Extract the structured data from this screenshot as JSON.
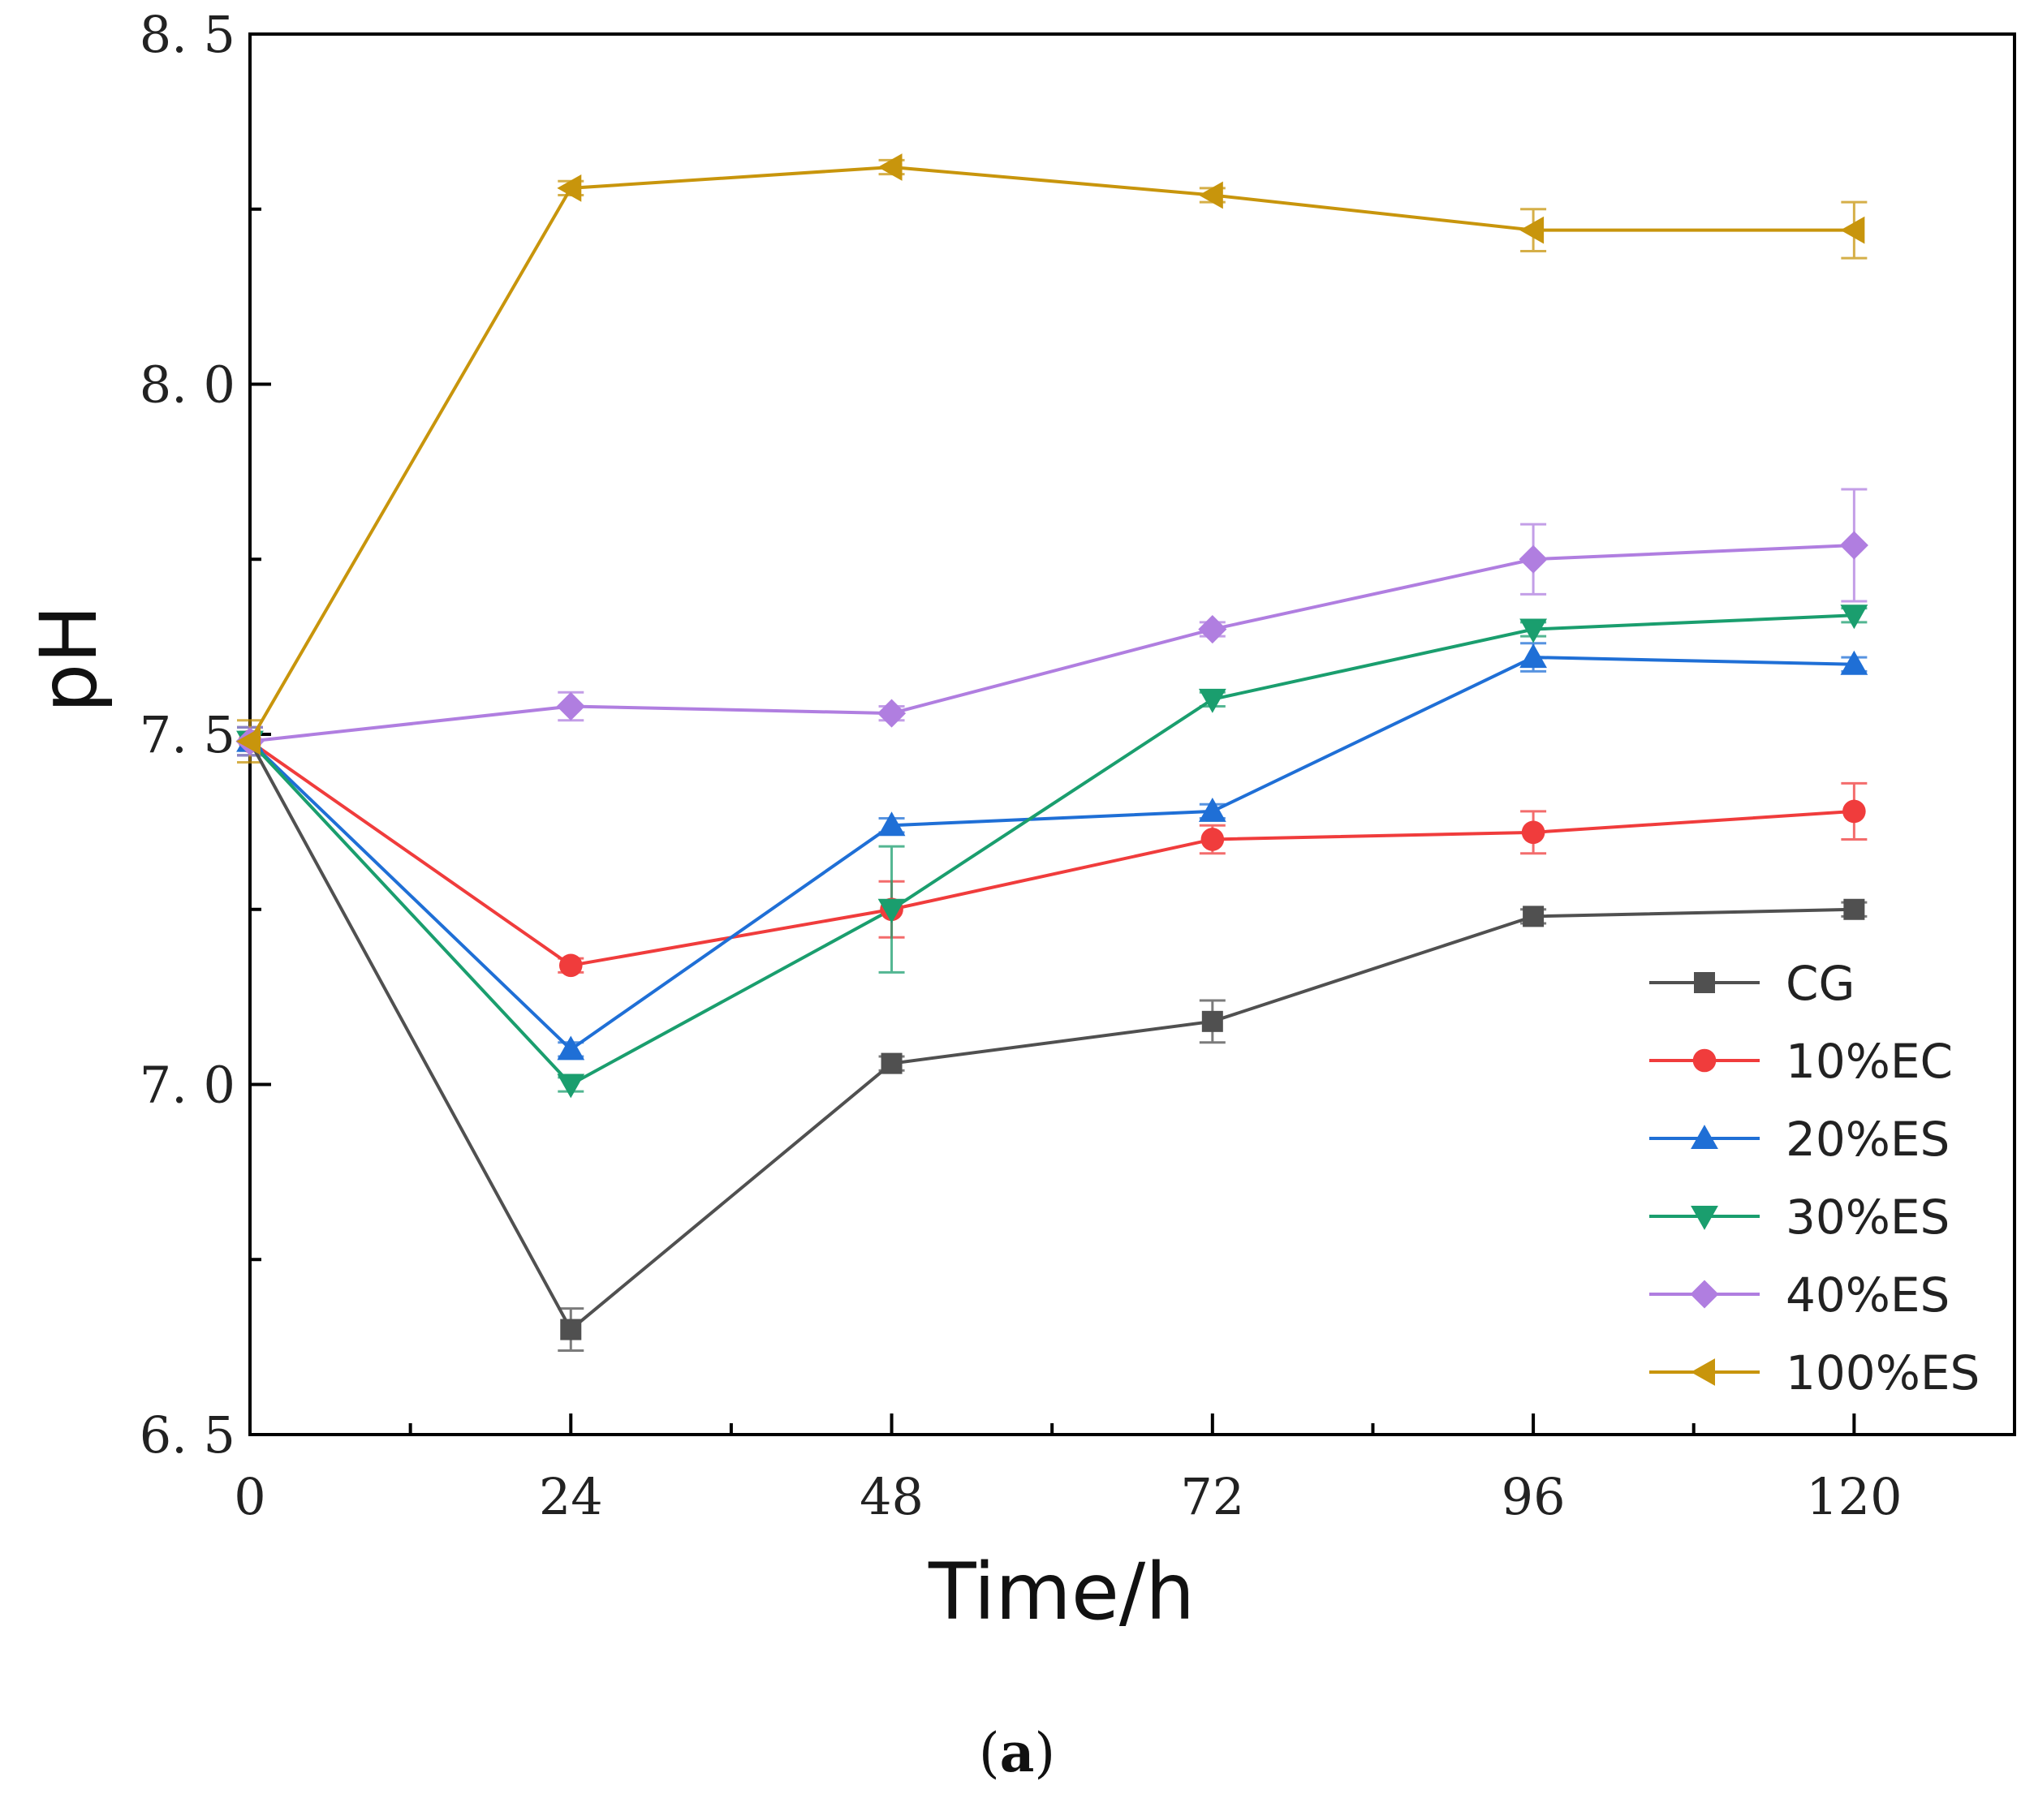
{
  "chart_data": {
    "type": "line",
    "title": "",
    "xlabel": "Time/h",
    "ylabel": "pH",
    "x": [
      0,
      24,
      48,
      72,
      96,
      120
    ],
    "xlim": [
      0,
      132
    ],
    "ylim": [
      6.5,
      8.5
    ],
    "xticks": [
      "0",
      "24",
      "48",
      "72",
      "96",
      "120"
    ],
    "yticks": [
      "6. 5",
      "7. 0",
      "7. 5",
      "8. 0",
      "8. 5"
    ],
    "grid": false,
    "legend_position": "bottom-right",
    "series": [
      {
        "name": "CG",
        "color": "#505050",
        "marker": "square",
        "values": [
          7.49,
          6.65,
          7.03,
          7.09,
          7.24,
          7.25
        ],
        "errors": [
          0.02,
          0.03,
          0.01,
          0.03,
          0.01,
          0.01
        ]
      },
      {
        "name": "10%EC",
        "color": "#f03c3c",
        "marker": "circle",
        "values": [
          7.49,
          7.17,
          7.25,
          7.35,
          7.36,
          7.39
        ],
        "errors": [
          0.02,
          0.01,
          0.04,
          0.02,
          0.03,
          0.04
        ]
      },
      {
        "name": "20%ES",
        "color": "#1f6fd6",
        "marker": "triangle-up",
        "values": [
          7.49,
          7.05,
          7.37,
          7.39,
          7.61,
          7.6
        ],
        "errors": [
          0.02,
          0.01,
          0.01,
          0.01,
          0.02,
          0.01
        ]
      },
      {
        "name": "30%ES",
        "color": "#1a9e6e",
        "marker": "triangle-down",
        "values": [
          7.49,
          7.0,
          7.25,
          7.55,
          7.65,
          7.67
        ],
        "errors": [
          0.02,
          0.01,
          0.09,
          0.01,
          0.01,
          0.01
        ]
      },
      {
        "name": "40%ES",
        "color": "#b07ee0",
        "marker": "diamond",
        "values": [
          7.49,
          7.54,
          7.53,
          7.65,
          7.75,
          7.77
        ],
        "errors": [
          0.02,
          0.02,
          0.01,
          0.01,
          0.05,
          0.08
        ]
      },
      {
        "name": "100%ES",
        "color": "#c8950c",
        "marker": "triangle-left",
        "values": [
          7.49,
          8.28,
          8.31,
          8.27,
          8.22,
          8.22
        ],
        "errors": [
          0.03,
          0.01,
          0.01,
          0.01,
          0.03,
          0.04
        ]
      }
    ]
  },
  "caption": {
    "open": "(",
    "letter": "a",
    "close": ")"
  }
}
